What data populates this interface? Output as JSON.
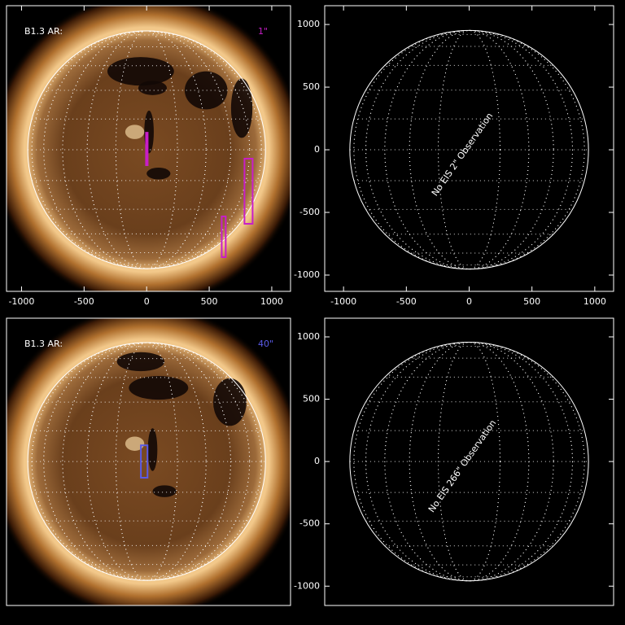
{
  "chart_data": [
    {
      "type": "solar-image",
      "label": "B1.3 AR:",
      "label_right": "1\"",
      "label_right_color": "#c81ec8",
      "xlim": [
        -1120,
        1150
      ],
      "ylim": [
        -1130,
        1150
      ],
      "xticks": [
        -1000,
        -500,
        0,
        500,
        1000
      ],
      "box_color": "#c81ec8",
      "boxes": [
        {
          "x": [
            -5,
            5
          ],
          "y": [
            -123,
            136
          ]
        },
        {
          "x": [
            782,
            847
          ],
          "y": [
            -591,
            -71
          ]
        },
        {
          "x": [
            600,
            632
          ],
          "y": [
            -857,
            -532
          ]
        }
      ]
    },
    {
      "type": "empty-disk",
      "annotation": "No EIS 2\" Observation",
      "xlim": [
        -1150,
        1150
      ],
      "ylim": [
        -1130,
        1150
      ],
      "xticks": [
        -1000,
        -500,
        0,
        500,
        1000
      ],
      "yticks": [
        -1000,
        -500,
        0,
        500,
        1000
      ]
    },
    {
      "type": "solar-image",
      "label": "B1.3 AR:",
      "label_right": "40\"",
      "label_right_color": "#5a5ae6",
      "xlim": [
        -1120,
        1150
      ],
      "ylim": [
        -1155,
        1150
      ],
      "box_color": "#5a5ae6",
      "boxes": [
        {
          "x": [
            -46,
            7
          ],
          "y": [
            -130,
            130
          ]
        }
      ]
    },
    {
      "type": "empty-disk",
      "annotation": "No EIS 266\" Observation",
      "xlim": [
        -1150,
        1150
      ],
      "ylim": [
        -1155,
        1150
      ],
      "yticks": [
        -1000,
        -500,
        0,
        500,
        1000
      ]
    }
  ]
}
